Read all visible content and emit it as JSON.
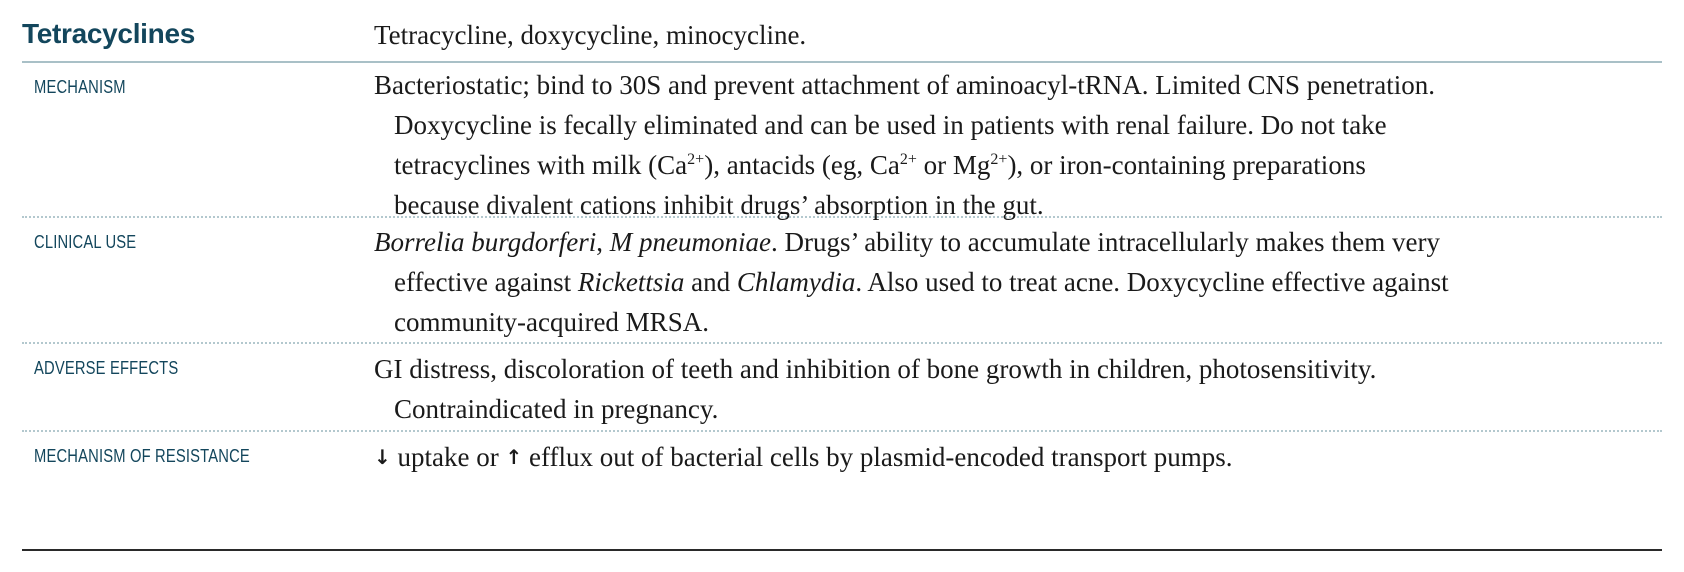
{
  "title": "Tetracyclines",
  "subtitle": "Tetracycline, doxycycline, minocycline.",
  "rows": {
    "mechanism": {
      "label": "MECHANISM",
      "line1": "Bacteriostatic; bind to 30S and prevent attachment of aminoacyl-tRNA. Limited CNS penetration.",
      "line2": "Doxycycline is fecally eliminated and can be used in patients with renal failure. Do not take",
      "line3_a": "tetracyclines with milk (Ca",
      "line3_sup1": "2+",
      "line3_b": "), antacids (eg, Ca",
      "line3_sup2": "2+",
      "line3_c": " or Mg",
      "line3_sup3": "2+",
      "line3_d": "), or iron-containing preparations",
      "line4": "because divalent cations inhibit drugs’ absorption in the gut."
    },
    "clinical_use": {
      "label": "CLINICAL USE",
      "line1_italic1": "Borrelia burgdorferi",
      "line1_sep": ", ",
      "line1_italic2": "M pneumoniae",
      "line1_rest": ". Drugs’ ability to accumulate intracellularly makes them very",
      "line2_a": "effective against ",
      "line2_italic1": "Rickettsia",
      "line2_b": " and ",
      "line2_italic2": "Chlamydia",
      "line2_c": ". Also used to treat acne. Doxycycline effective against",
      "line3": "community-acquired MRSA."
    },
    "adverse_effects": {
      "label": "ADVERSE EFFECTS",
      "line1": "GI distress, discoloration of teeth and inhibition of bone growth in children, photosensitivity.",
      "line2": "Contraindicated in pregnancy."
    },
    "resistance": {
      "label": "MECHANISM OF RESISTANCE",
      "down_arrow": "↓",
      "text_a": " uptake or ",
      "up_arrow": "↑",
      "text_b": " efflux out of bacterial cells by plasmid-encoded transport pumps."
    }
  },
  "colors": {
    "heading": "#13465c",
    "rule": "#a9c0c7",
    "dotted_rule": "#b3c8ce",
    "text": "#1a1a1a"
  }
}
